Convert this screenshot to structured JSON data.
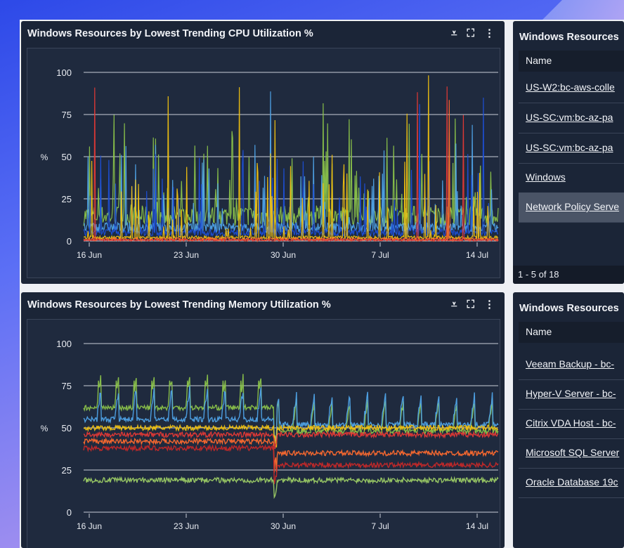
{
  "cpu_widget": {
    "title": "Windows Resources by Lowest Trending CPU Utilization %",
    "icons": [
      "filter-dots-icon",
      "fullscreen-icon",
      "kebab-menu-icon"
    ]
  },
  "memory_widget": {
    "title": "Windows Resources by Lowest Trending Memory Utilization %",
    "icons": [
      "filter-dots-icon",
      "fullscreen-icon",
      "kebab-menu-icon"
    ]
  },
  "table_top": {
    "title": "Windows Resources",
    "column": "Name",
    "rows": [
      "US-W2:bc-aws-colle",
      "US-SC:vm:bc-az-pa",
      "US-SC:vm:bc-az-pa",
      "Windows",
      "Network Policy Serve"
    ],
    "selected_index": 4,
    "footer": "1 - 5 of 18"
  },
  "table_bottom": {
    "title": "Windows Resources",
    "column": "Name",
    "rows": [
      "Veeam Backup - bc-",
      "Hyper-V Server - bc-",
      "Citrix VDA Host - bc-",
      "Microsoft SQL Server",
      "Oracle Database 19c"
    ]
  },
  "chart_data": [
    {
      "type": "line",
      "title": "Windows Resources by Lowest Trending CPU Utilization %",
      "ylabel": "%",
      "ylim": [
        0,
        100
      ],
      "yticks": [
        0,
        25,
        50,
        75,
        100
      ],
      "xticks": [
        "16 Jun",
        "23 Jun",
        "30 Jun",
        "7 Jul",
        "14 Jul"
      ],
      "grid": true,
      "series": [
        {
          "color": "#8bc34a",
          "baseline": 15,
          "spread": 12
        },
        {
          "color": "#4fa3e8",
          "baseline": 8,
          "spread": 6
        },
        {
          "color": "#1e4fd6",
          "baseline": 5,
          "spread": 4
        },
        {
          "color": "#f2c20f",
          "baseline": 2,
          "spread": 2
        },
        {
          "color": "#ff6a2e",
          "baseline": 1,
          "spread": 2
        },
        {
          "color": "#e53935",
          "baseline": 0.5,
          "spread": 1
        }
      ]
    },
    {
      "type": "line",
      "title": "Windows Resources by Lowest Trending Memory Utilization %",
      "ylabel": "%",
      "ylim": [
        0,
        100
      ],
      "yticks": [
        0,
        25,
        50,
        75,
        100
      ],
      "xticks": [
        "16 Jun",
        "23 Jun",
        "30 Jun",
        "7 Jul",
        "14 Jul"
      ],
      "grid": true,
      "series": [
        {
          "color": "#8bc34a",
          "baseline": 62,
          "after": 48
        },
        {
          "color": "#4fa3e8",
          "baseline": 55,
          "after": 52
        },
        {
          "color": "#f2c20f",
          "baseline": 50,
          "after": 50
        },
        {
          "color": "#ff6a2e",
          "baseline": 42,
          "after": 35
        },
        {
          "color": "#e53935",
          "baseline": 46,
          "after": 46
        },
        {
          "color": "#c62828",
          "baseline": 38,
          "after": 28
        },
        {
          "color": "#9ccc65",
          "baseline": 19,
          "after": 19
        }
      ]
    }
  ]
}
